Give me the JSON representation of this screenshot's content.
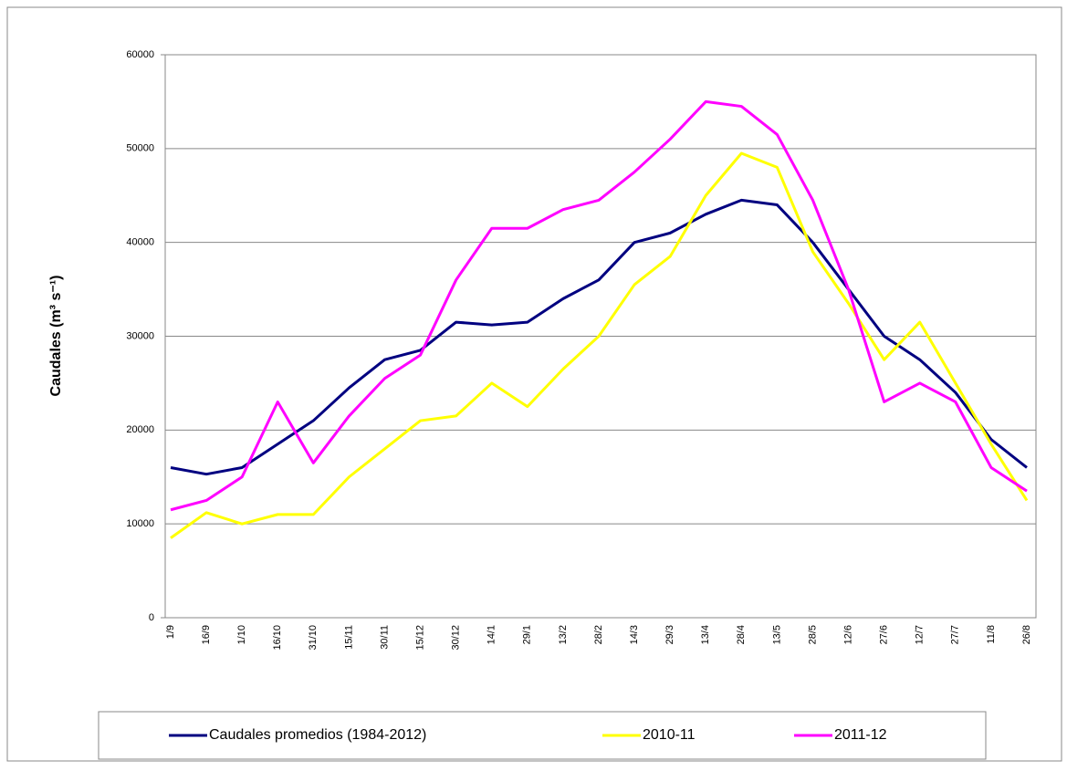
{
  "chart_data": {
    "type": "line",
    "y_label": "Caudales (m³ s⁻¹)",
    "categories": [
      "1/9",
      "16/9",
      "1/10",
      "16/10",
      "31/10",
      "15/11",
      "30/11",
      "15/12",
      "30/12",
      "14/1",
      "29/1",
      "13/2",
      "28/2",
      "14/3",
      "29/3",
      "13/4",
      "28/4",
      "13/5",
      "28/5",
      "12/6",
      "27/6",
      "12/7",
      "27/7",
      "11/8",
      "26/8"
    ],
    "series": [
      {
        "name": "Caudales promedios (1984-2012)",
        "color": "#000080",
        "values": [
          16000,
          15300,
          16000,
          18500,
          21000,
          24500,
          27500,
          28500,
          31500,
          31200,
          31500,
          34000,
          36000,
          40000,
          41000,
          43000,
          44500,
          44000,
          40000,
          35000,
          30000,
          27500,
          24000,
          19000,
          16000
        ]
      },
      {
        "name": "2010-11",
        "color": "#ffff00",
        "values": [
          8500,
          11200,
          10000,
          11000,
          11000,
          15000,
          18000,
          21000,
          21500,
          25000,
          22500,
          26500,
          30000,
          35500,
          38500,
          45000,
          49500,
          48000,
          39000,
          33500,
          27500,
          31500,
          25000,
          18500,
          12500
        ]
      },
      {
        "name": "2011-12",
        "color": "#ff00ff",
        "values": [
          11500,
          12500,
          15000,
          23000,
          16500,
          21500,
          25500,
          28000,
          36000,
          41500,
          41500,
          43500,
          44500,
          47500,
          51000,
          55000,
          54500,
          51500,
          44500,
          35000,
          23000,
          25000,
          23000,
          16000,
          13500
        ]
      }
    ],
    "ylim": [
      0,
      60000
    ],
    "yticks": [
      0,
      10000,
      20000,
      30000,
      40000,
      50000,
      60000
    ],
    "grid": true
  }
}
